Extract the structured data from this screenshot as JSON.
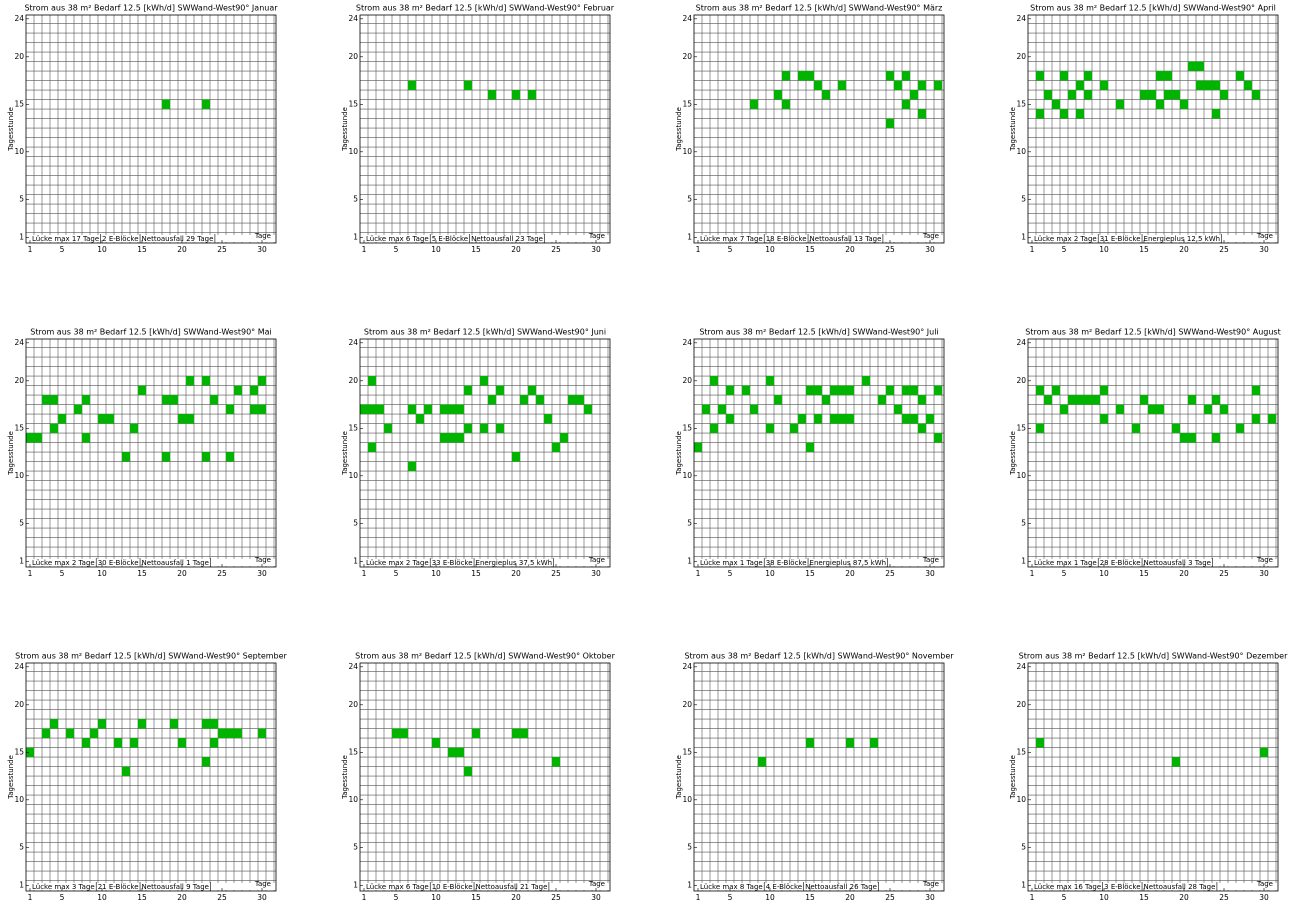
{
  "chart_data": [
    {
      "type": "grid",
      "title": "Strom aus 38 m² Bedarf 12.5 [kWh/d] SWWand-West90°  Januar",
      "ylabel": "Tagesstunde",
      "xlabel": "Tage",
      "annotations": [
        "Lücke max 17 Tage",
        "2 E-Blöcke",
        "Nettoausfall 29 Tage"
      ],
      "x": [
        18,
        23
      ],
      "y": [
        15,
        15
      ],
      "color": "#00b400",
      "xlim": [
        0.5,
        31.75
      ],
      "ylim": [
        0.4,
        24.4
      ],
      "xticks": [
        1,
        5,
        10,
        15,
        20,
        25,
        30
      ],
      "yticks": [
        1,
        5,
        10,
        15,
        20,
        24
      ]
    },
    {
      "type": "grid",
      "title": "Strom aus 38 m² Bedarf 12.5 [kWh/d] SWWand-West90°  Februar",
      "ylabel": "Tagesstunde",
      "xlabel": "Tage",
      "annotations": [
        "Lücke max 6 Tage",
        "5 E-Blöcke",
        "Nettoausfall 23 Tage"
      ],
      "x": [
        7,
        14,
        17,
        20,
        22
      ],
      "y": [
        17,
        17,
        16,
        16,
        16
      ],
      "color": "#00b400",
      "xlim": [
        0.5,
        31.75
      ],
      "ylim": [
        0.4,
        24.4
      ],
      "xticks": [
        1,
        5,
        10,
        15,
        20,
        25,
        30
      ],
      "yticks": [
        1,
        5,
        10,
        15,
        20,
        24
      ]
    },
    {
      "type": "grid",
      "title": "Strom aus 38 m² Bedarf 12.5 [kWh/d] SWWand-West90°  März",
      "ylabel": "Tagesstunde",
      "xlabel": "Tage",
      "annotations": [
        "Lücke max 7 Tage",
        "18 E-Blöcke",
        "Nettoausfall 13 Tage"
      ],
      "x": [
        8,
        11,
        12,
        12,
        14,
        15,
        16,
        17,
        19,
        25,
        25,
        26,
        27,
        27,
        28,
        29,
        29,
        31
      ],
      "y": [
        15,
        16,
        18,
        15,
        18,
        18,
        17,
        16,
        17,
        18,
        13,
        17,
        18,
        15,
        16,
        17,
        14,
        17
      ],
      "color": "#00b400",
      "xlim": [
        0.5,
        31.75
      ],
      "ylim": [
        0.4,
        24.4
      ],
      "xticks": [
        1,
        5,
        10,
        15,
        20,
        25,
        30
      ],
      "yticks": [
        1,
        5,
        10,
        15,
        20,
        24
      ]
    },
    {
      "type": "grid",
      "title": "Strom aus 38 m² Bedarf 12.5 [kWh/d] SWWand-West90°  April",
      "ylabel": "Tagesstunde",
      "xlabel": "Tage",
      "annotations": [
        "Lücke max 2 Tage",
        "31 E-Blöcke",
        "Energieplus  12,5 kWh"
      ],
      "x": [
        2,
        2,
        3,
        4,
        5,
        5,
        6,
        7,
        7,
        8,
        8,
        10,
        12,
        15,
        16,
        17,
        18,
        17,
        18,
        19,
        20,
        21,
        22,
        22,
        23,
        24,
        24,
        25,
        27,
        28,
        29
      ],
      "y": [
        18,
        14,
        16,
        15,
        18,
        14,
        16,
        17,
        14,
        18,
        16,
        17,
        15,
        16,
        16,
        18,
        18,
        15,
        16,
        16,
        15,
        19,
        19,
        17,
        17,
        17,
        14,
        16,
        18,
        17,
        16
      ],
      "color": "#00b400",
      "xlim": [
        0.5,
        31.75
      ],
      "ylim": [
        0.4,
        24.4
      ],
      "xticks": [
        1,
        5,
        10,
        15,
        20,
        25,
        30
      ],
      "yticks": [
        1,
        5,
        10,
        15,
        20,
        24
      ]
    },
    {
      "type": "grid",
      "title": "Strom aus 38 m² Bedarf 12.5 [kWh/d] SWWand-West90°  Mai",
      "ylabel": "Tagesstunde",
      "xlabel": "Tage",
      "annotations": [
        "Lücke max 2 Tage",
        "30 E-Blöcke",
        "Nettoausfall 1 Tage"
      ],
      "x": [
        1,
        2,
        3,
        4,
        4,
        5,
        7,
        8,
        8,
        10,
        11,
        13,
        14,
        15,
        18,
        19,
        18,
        20,
        21,
        21,
        23,
        23,
        24,
        26,
        26,
        27,
        29,
        29,
        30,
        30
      ],
      "y": [
        14,
        14,
        18,
        18,
        15,
        16,
        17,
        18,
        14,
        16,
        16,
        12,
        15,
        19,
        18,
        18,
        12,
        16,
        16,
        20,
        20,
        12,
        18,
        17,
        12,
        19,
        19,
        17,
        17,
        20
      ],
      "color": "#00b400",
      "xlim": [
        0.5,
        31.75
      ],
      "ylim": [
        0.4,
        24.4
      ],
      "xticks": [
        1,
        5,
        10,
        15,
        20,
        25,
        30
      ],
      "yticks": [
        1,
        5,
        10,
        15,
        20,
        24
      ]
    },
    {
      "type": "grid",
      "title": "Strom aus 38 m² Bedarf 12.5 [kWh/d] SWWand-West90°  Juni",
      "ylabel": "Tagesstunde",
      "xlabel": "Tage",
      "annotations": [
        "Lücke max 2 Tage",
        "33 E-Blöcke",
        "Energieplus  37,5 kWh"
      ],
      "x": [
        1,
        2,
        3,
        2,
        2,
        4,
        7,
        7,
        8,
        9,
        11,
        12,
        13,
        11,
        12,
        13,
        14,
        14,
        16,
        16,
        17,
        18,
        18,
        20,
        21,
        22,
        23,
        24,
        25,
        26,
        27,
        28,
        29
      ],
      "y": [
        17,
        17,
        17,
        20,
        13,
        15,
        17,
        11,
        16,
        17,
        17,
        17,
        17,
        14,
        14,
        14,
        15,
        19,
        20,
        15,
        18,
        19,
        15,
        12,
        18,
        19,
        18,
        16,
        13,
        14,
        18,
        18,
        17
      ],
      "color": "#00b400",
      "xlim": [
        0.5,
        31.75
      ],
      "ylim": [
        0.4,
        24.4
      ],
      "xticks": [
        1,
        5,
        10,
        15,
        20,
        25,
        30
      ],
      "yticks": [
        1,
        5,
        10,
        15,
        20,
        24
      ]
    },
    {
      "type": "grid",
      "title": "Strom aus 38 m² Bedarf 12.5 [kWh/d] SWWand-West90°  Juli",
      "ylabel": "Tagesstunde",
      "xlabel": "Tage",
      "annotations": [
        "Lücke max 1 Tage",
        "38 E-Blöcke",
        "Energieplus  87,5 kWh"
      ],
      "x": [
        1,
        2,
        3,
        3,
        4,
        5,
        5,
        7,
        8,
        10,
        10,
        11,
        13,
        14,
        15,
        16,
        15,
        16,
        17,
        18,
        19,
        20,
        18,
        19,
        20,
        22,
        24,
        25,
        26,
        27,
        28,
        27,
        28,
        29,
        29,
        30,
        31,
        31
      ],
      "y": [
        13,
        17,
        20,
        15,
        17,
        19,
        16,
        19,
        17,
        20,
        15,
        18,
        15,
        16,
        19,
        19,
        13,
        16,
        18,
        19,
        19,
        19,
        16,
        16,
        16,
        20,
        18,
        19,
        17,
        19,
        19,
        16,
        16,
        18,
        15,
        16,
        19,
        14
      ],
      "color": "#00b400",
      "xlim": [
        0.5,
        31.75
      ],
      "ylim": [
        0.4,
        24.4
      ],
      "xticks": [
        1,
        5,
        10,
        15,
        20,
        25,
        30
      ],
      "yticks": [
        1,
        5,
        10,
        15,
        20,
        24
      ]
    },
    {
      "type": "grid",
      "title": "Strom aus 38 m² Bedarf 12.5 [kWh/d] SWWand-West90°  August",
      "ylabel": "Tagesstunde",
      "xlabel": "Tage",
      "annotations": [
        "Lücke max 1 Tage",
        "28 E-Blöcke",
        "Nettoausfall 3 Tage"
      ],
      "x": [
        2,
        2,
        3,
        4,
        5,
        6,
        7,
        8,
        9,
        10,
        10,
        12,
        14,
        15,
        16,
        17,
        19,
        20,
        21,
        21,
        23,
        24,
        24,
        25,
        27,
        29,
        29,
        31
      ],
      "y": [
        19,
        15,
        18,
        19,
        17,
        18,
        18,
        18,
        18,
        19,
        16,
        17,
        15,
        18,
        17,
        17,
        15,
        14,
        14,
        18,
        17,
        18,
        14,
        17,
        15,
        19,
        16,
        16
      ],
      "color": "#00b400",
      "xlim": [
        0.5,
        31.75
      ],
      "ylim": [
        0.4,
        24.4
      ],
      "xticks": [
        1,
        5,
        10,
        15,
        20,
        25,
        30
      ],
      "yticks": [
        1,
        5,
        10,
        15,
        20,
        24
      ]
    },
    {
      "type": "grid",
      "title": "Strom aus 38 m² Bedarf 12.5 [kWh/d] SWWand-West90°  September",
      "ylabel": "Tagesstunde",
      "xlabel": "Tage",
      "annotations": [
        "Lücke max 3 Tage",
        "21 E-Blöcke",
        "Nettoausfall 9 Tage"
      ],
      "x": [
        1,
        3,
        4,
        6,
        8,
        9,
        10,
        12,
        13,
        14,
        15,
        19,
        20,
        23,
        24,
        23,
        24,
        25,
        26,
        27,
        30
      ],
      "y": [
        15,
        17,
        18,
        17,
        16,
        17,
        18,
        16,
        13,
        16,
        18,
        18,
        16,
        18,
        18,
        14,
        16,
        17,
        17,
        17,
        17
      ],
      "color": "#00b400",
      "xlim": [
        0.5,
        31.75
      ],
      "ylim": [
        0.4,
        24.4
      ],
      "xticks": [
        1,
        5,
        10,
        15,
        20,
        25,
        30
      ],
      "yticks": [
        1,
        5,
        10,
        15,
        20,
        24
      ]
    },
    {
      "type": "grid",
      "title": "Strom aus 38 m² Bedarf 12.5 [kWh/d] SWWand-West90°  Oktober",
      "ylabel": "Tagesstunde",
      "xlabel": "Tage",
      "annotations": [
        "Lücke max 6 Tage",
        "10 E-Blöcke",
        "Nettoausfall 21 Tage"
      ],
      "x": [
        5,
        6,
        10,
        12,
        13,
        14,
        15,
        20,
        21,
        25
      ],
      "y": [
        17,
        17,
        16,
        15,
        15,
        13,
        17,
        17,
        17,
        14
      ],
      "color": "#00b400",
      "xlim": [
        0.5,
        31.75
      ],
      "ylim": [
        0.4,
        24.4
      ],
      "xticks": [
        1,
        5,
        10,
        15,
        20,
        25,
        30
      ],
      "yticks": [
        1,
        5,
        10,
        15,
        20,
        24
      ]
    },
    {
      "type": "grid",
      "title": "Strom aus 38 m² Bedarf 12.5 [kWh/d] SWWand-West90°  November",
      "ylabel": "Tagesstunde",
      "xlabel": "Tage",
      "annotations": [
        "Lücke max 8 Tage",
        "4 E-Blöcke",
        "Nettoausfall 26 Tage"
      ],
      "x": [
        9,
        15,
        20,
        23
      ],
      "y": [
        14,
        16,
        16,
        16
      ],
      "color": "#00b400",
      "xlim": [
        0.5,
        31.75
      ],
      "ylim": [
        0.4,
        24.4
      ],
      "xticks": [
        1,
        5,
        10,
        15,
        20,
        25,
        30
      ],
      "yticks": [
        1,
        5,
        10,
        15,
        20,
        24
      ]
    },
    {
      "type": "grid",
      "title": "Strom aus 38 m² Bedarf 12.5 [kWh/d] SWWand-West90°  Dezember",
      "ylabel": "Tagesstunde",
      "xlabel": "Tage",
      "annotations": [
        "Lücke max 16 Tage",
        "3 E-Blöcke",
        "Nettoausfall 28 Tage"
      ],
      "x": [
        2,
        19,
        30
      ],
      "y": [
        16,
        14,
        15
      ],
      "color": "#00b400",
      "xlim": [
        0.5,
        31.75
      ],
      "ylim": [
        0.4,
        24.4
      ],
      "xticks": [
        1,
        5,
        10,
        15,
        20,
        25,
        30
      ],
      "yticks": [
        1,
        5,
        10,
        15,
        20,
        24
      ]
    }
  ]
}
